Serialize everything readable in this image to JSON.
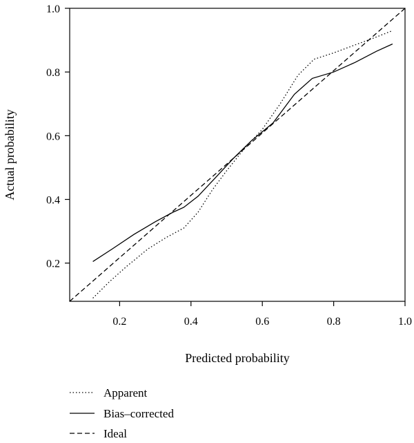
{
  "chart_data": {
    "type": "line",
    "title": "",
    "xlabel": "Predicted probability",
    "ylabel": "Actual probability",
    "xlim": [
      0.06,
      1.0
    ],
    "ylim": [
      0.08,
      1.0
    ],
    "xticks": [
      "0.2",
      "0.4",
      "0.6",
      "0.8",
      "1.0"
    ],
    "yticks": [
      "0.2",
      "0.4",
      "0.6",
      "0.8",
      "1.0"
    ],
    "grid": false,
    "legend_position": "bottom-left",
    "series": [
      {
        "name": "Apparent",
        "style": "dotted",
        "color": "#000000",
        "points": [
          [
            0.125,
            0.09
          ],
          [
            0.17,
            0.14
          ],
          [
            0.22,
            0.19
          ],
          [
            0.28,
            0.245
          ],
          [
            0.33,
            0.28
          ],
          [
            0.38,
            0.31
          ],
          [
            0.42,
            0.36
          ],
          [
            0.46,
            0.43
          ],
          [
            0.5,
            0.49
          ],
          [
            0.55,
            0.56
          ],
          [
            0.6,
            0.62
          ],
          [
            0.65,
            0.7
          ],
          [
            0.7,
            0.79
          ],
          [
            0.745,
            0.84
          ],
          [
            0.8,
            0.86
          ],
          [
            0.86,
            0.885
          ],
          [
            0.92,
            0.91
          ],
          [
            0.965,
            0.93
          ]
        ]
      },
      {
        "name": "Bias–corrected",
        "style": "solid",
        "color": "#000000",
        "points": [
          [
            0.125,
            0.205
          ],
          [
            0.18,
            0.245
          ],
          [
            0.24,
            0.29
          ],
          [
            0.3,
            0.33
          ],
          [
            0.35,
            0.36
          ],
          [
            0.38,
            0.375
          ],
          [
            0.42,
            0.41
          ],
          [
            0.47,
            0.47
          ],
          [
            0.52,
            0.53
          ],
          [
            0.57,
            0.585
          ],
          [
            0.63,
            0.64
          ],
          [
            0.69,
            0.73
          ],
          [
            0.74,
            0.78
          ],
          [
            0.8,
            0.8
          ],
          [
            0.86,
            0.83
          ],
          [
            0.92,
            0.865
          ],
          [
            0.965,
            0.888
          ]
        ]
      },
      {
        "name": "Ideal",
        "style": "dashed",
        "color": "#000000",
        "points": [
          [
            0.06,
            0.08
          ],
          [
            1.0,
            1.0
          ]
        ]
      }
    ]
  }
}
